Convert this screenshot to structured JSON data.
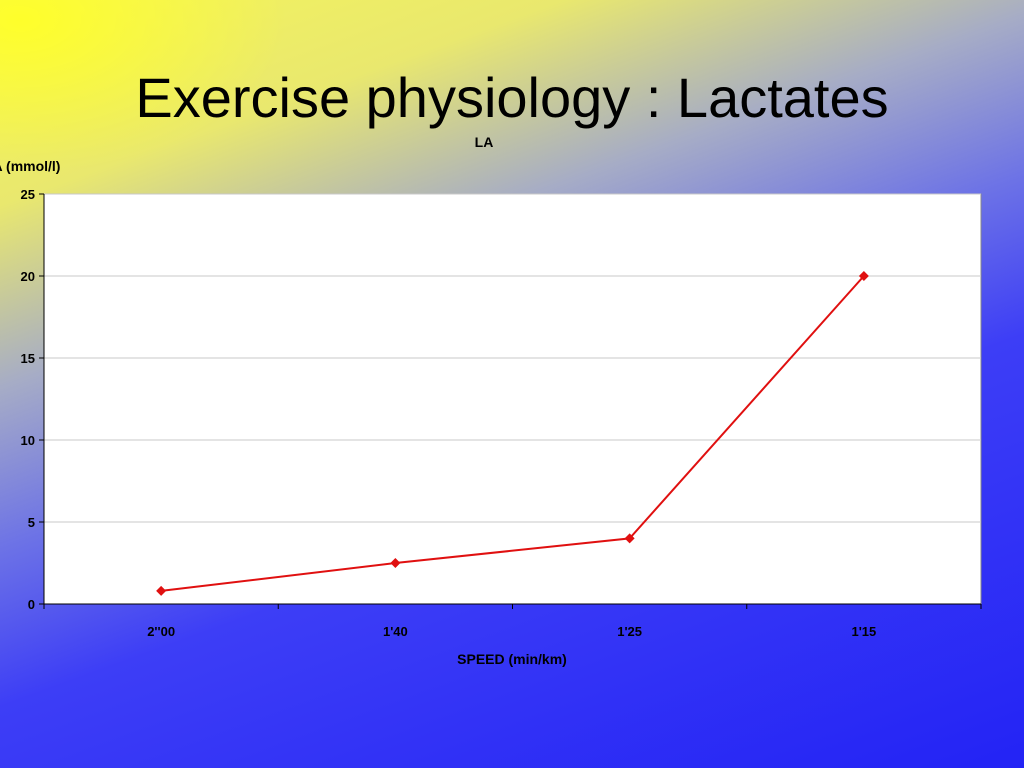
{
  "slide": {
    "title": "Exercise physiology : Lactates"
  },
  "colors": {
    "series": "#e01010",
    "plot_bg": "#ffffff",
    "gridline": "#c8c8c8"
  },
  "chart_data": {
    "type": "line",
    "title": "LA",
    "xlabel": "SPEED (min/km)",
    "ylabel": "LA (mmol/l)",
    "categories": [
      "2''00",
      "1'40",
      "1'25",
      "1'15"
    ],
    "series": [
      {
        "values": [
          0.8,
          2.5,
          4,
          20
        ],
        "marker": "diamond"
      }
    ],
    "ylim": [
      0,
      25
    ],
    "yticks": [
      0,
      5,
      10,
      15,
      20,
      25
    ],
    "grid": true,
    "legend": "none"
  }
}
